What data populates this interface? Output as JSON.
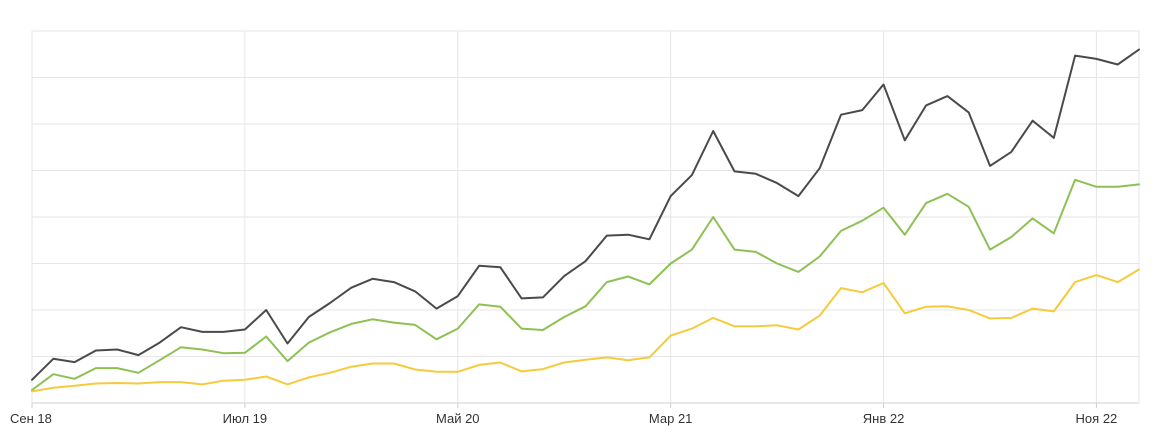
{
  "chart_data": {
    "type": "line",
    "title": "",
    "xlabel": "",
    "ylabel": "",
    "grid": true,
    "x_tick_labels": [
      "Сен 18",
      "Июл 19",
      "Май 20",
      "Мар 21",
      "Янв 22",
      "Ноя 22"
    ],
    "x_tick_indices": [
      0,
      10,
      20,
      30,
      40,
      50
    ],
    "ylim": [
      0,
      8
    ],
    "y_grid_step": 1,
    "series": [
      {
        "color": "#4a4a4a",
        "values": [
          0.5,
          0.95,
          0.88,
          1.13,
          1.15,
          1.03,
          1.3,
          1.63,
          1.53,
          1.53,
          1.58,
          2.0,
          1.28,
          1.85,
          2.15,
          2.48,
          2.67,
          2.6,
          2.4,
          2.03,
          2.3,
          2.95,
          2.92,
          2.25,
          2.27,
          2.73,
          3.05,
          3.6,
          3.62,
          3.52,
          4.45,
          4.9,
          5.85,
          4.98,
          4.93,
          4.73,
          4.45,
          5.05,
          6.2,
          6.3,
          6.85,
          5.65,
          6.4,
          6.6,
          6.25,
          5.1,
          5.4,
          6.07,
          5.7,
          7.47,
          7.4,
          7.28,
          7.6
        ]
      },
      {
        "color": "#8dc153",
        "values": [
          0.28,
          0.62,
          0.52,
          0.75,
          0.75,
          0.65,
          0.92,
          1.2,
          1.15,
          1.07,
          1.08,
          1.43,
          0.9,
          1.3,
          1.52,
          1.7,
          1.8,
          1.73,
          1.68,
          1.37,
          1.6,
          2.12,
          2.07,
          1.6,
          1.57,
          1.85,
          2.08,
          2.6,
          2.72,
          2.55,
          3.0,
          3.3,
          4.0,
          3.3,
          3.25,
          3.0,
          2.82,
          3.15,
          3.7,
          3.92,
          4.2,
          3.62,
          4.3,
          4.5,
          4.22,
          3.3,
          3.57,
          3.97,
          3.65,
          4.8,
          4.65,
          4.65,
          4.7
        ]
      },
      {
        "color": "#f5cb3d",
        "values": [
          0.25,
          0.33,
          0.37,
          0.42,
          0.43,
          0.42,
          0.45,
          0.45,
          0.4,
          0.48,
          0.5,
          0.57,
          0.4,
          0.55,
          0.65,
          0.78,
          0.85,
          0.85,
          0.72,
          0.67,
          0.67,
          0.82,
          0.87,
          0.68,
          0.73,
          0.87,
          0.93,
          0.98,
          0.92,
          0.98,
          1.45,
          1.6,
          1.83,
          1.65,
          1.65,
          1.67,
          1.58,
          1.88,
          2.47,
          2.38,
          2.58,
          1.93,
          2.07,
          2.08,
          2.0,
          1.82,
          1.83,
          2.03,
          1.97,
          2.6,
          2.75,
          2.6,
          2.87
        ]
      }
    ]
  }
}
